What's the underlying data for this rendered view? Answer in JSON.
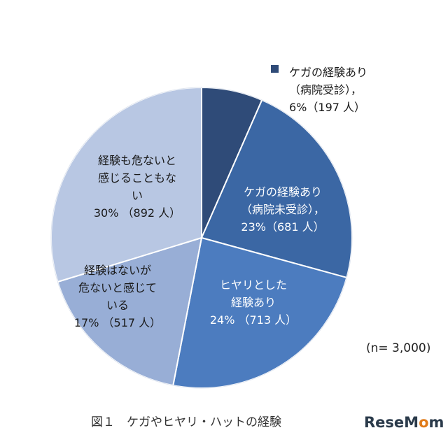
{
  "chart_data": {
    "type": "pie",
    "slices": [
      {
        "label_lines": [
          "ケガの経験あり",
          "（病院受診），",
          "6%（197 人）"
        ],
        "percent": 6,
        "count": 197,
        "color": "#2f4b78"
      },
      {
        "label_lines": [
          "ケガの経験あり",
          "（病院未受診），",
          "23%（681 人）"
        ],
        "percent": 23,
        "count": 681,
        "color": "#3b67a4"
      },
      {
        "label_lines": [
          "ヒヤリとした",
          "経験あり",
          "24% （713 人）"
        ],
        "percent": 24,
        "count": 713,
        "color": "#4c7cbf"
      },
      {
        "label_lines": [
          "経験はないが",
          "危ないと感じて",
          "いる",
          "17% （517 人）"
        ],
        "percent": 17,
        "count": 517,
        "color": "#98aed6"
      },
      {
        "label_lines": [
          "経験も危ないと",
          "感じることもな",
          "い",
          "30% （892 人）"
        ],
        "percent": 30,
        "count": 892,
        "color": "#b8c7e3"
      }
    ],
    "sample_note": "(n= 3,000)",
    "legend_marker_color": "#2f4b78"
  },
  "caption": "図１　ケガやヒヤリ・ハットの経験",
  "watermark": {
    "text_before": "ReseM",
    "text_accent": "o",
    "text_after": "m"
  }
}
